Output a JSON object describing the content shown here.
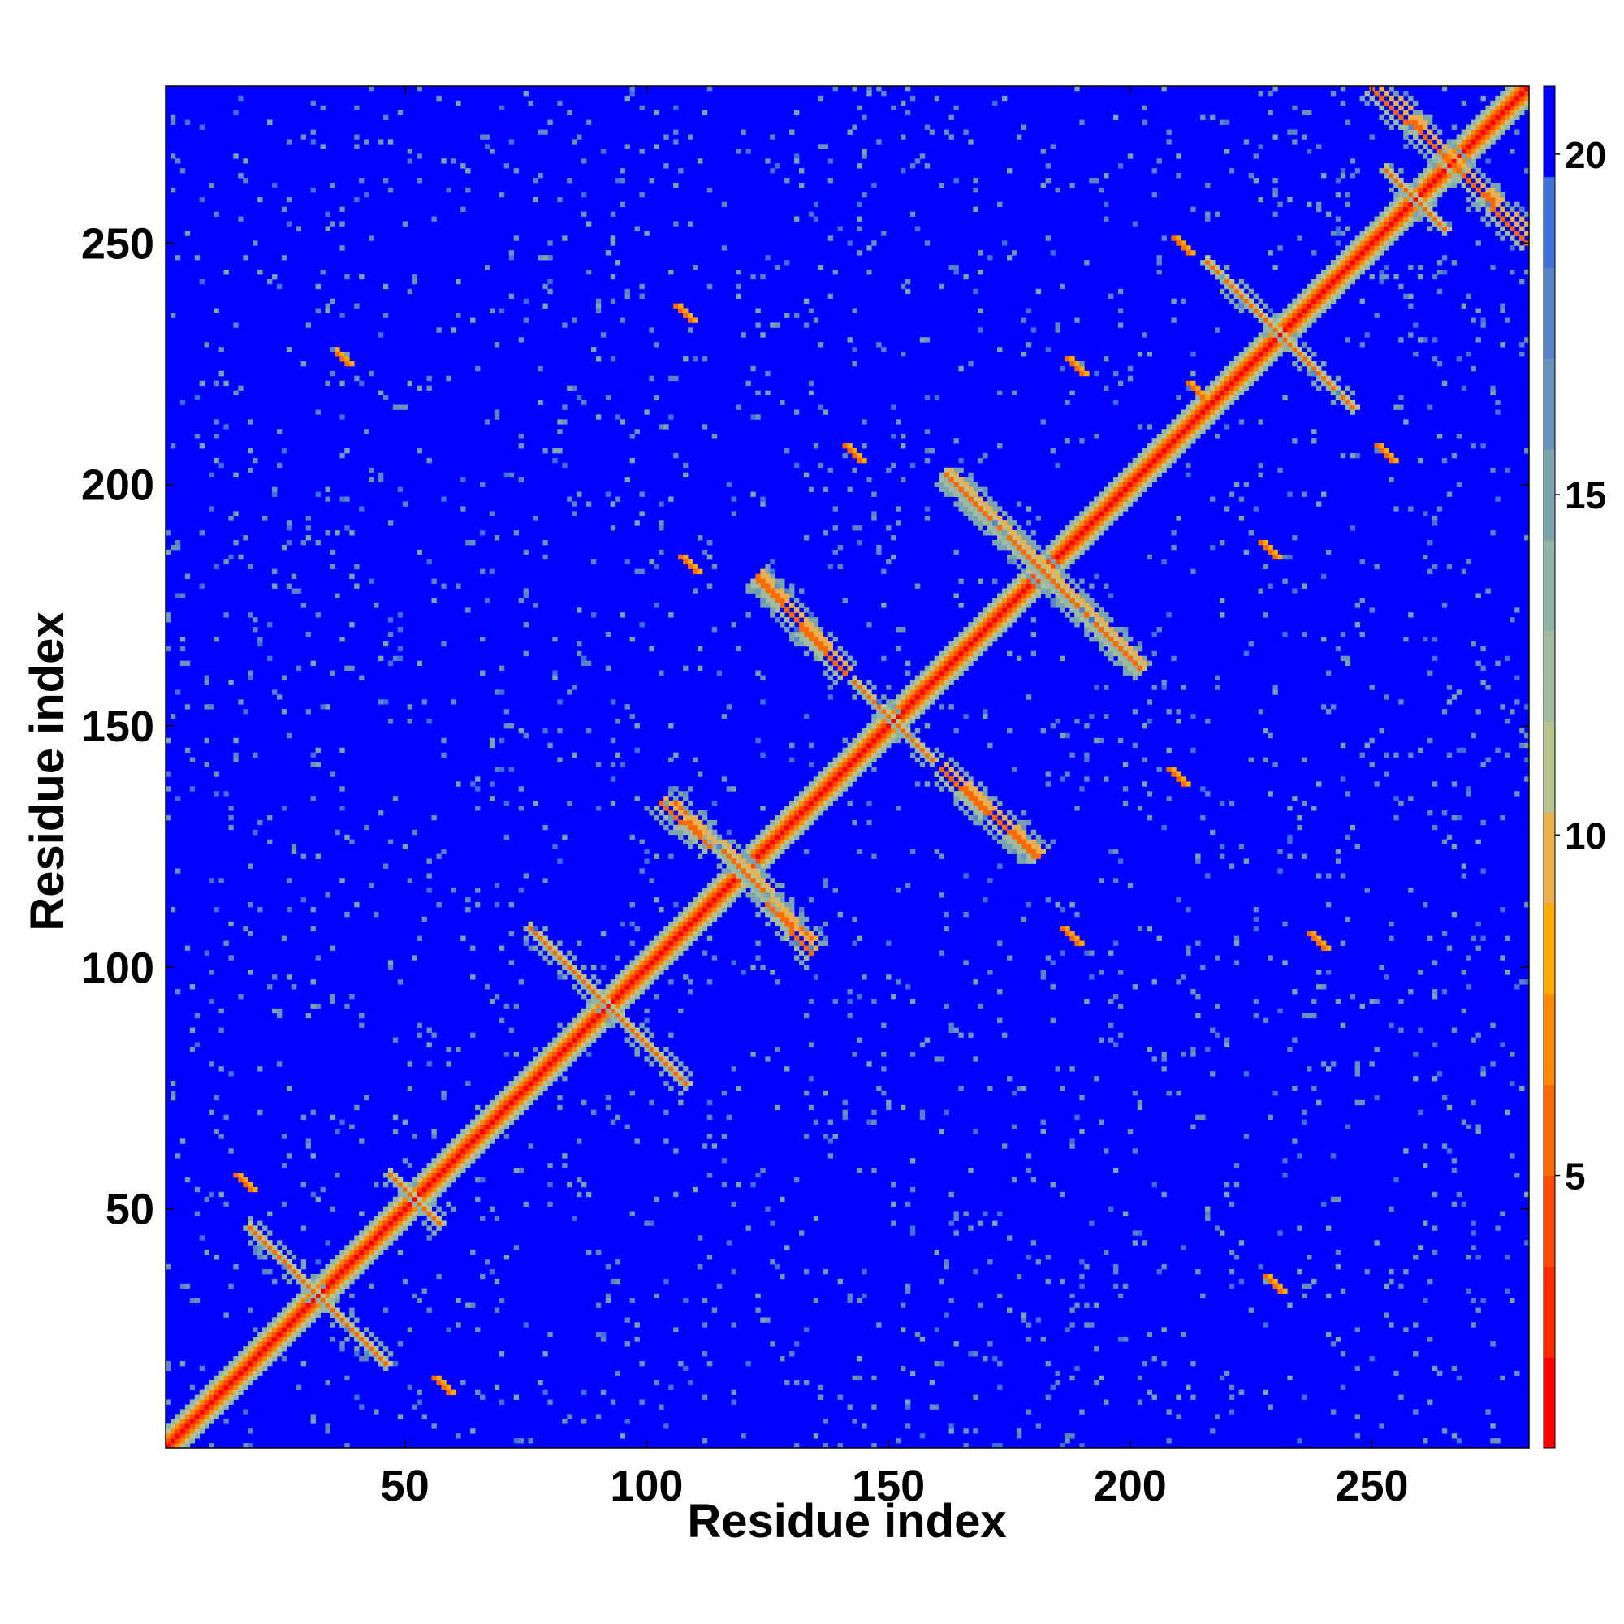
{
  "chart_data": {
    "type": "heatmap",
    "title": "",
    "xlabel": "Residue index",
    "ylabel": "Residue index",
    "xlim": [
      1,
      282
    ],
    "ylim": [
      1,
      282
    ],
    "x_ticks": [
      50,
      100,
      150,
      200,
      250
    ],
    "y_ticks": [
      50,
      100,
      150,
      200,
      250
    ],
    "colorbar": {
      "range": [
        1,
        21
      ],
      "ticks": [
        5,
        10,
        15,
        20
      ],
      "colors": [
        "#ff0000",
        "#ff2a00",
        "#ff4a00",
        "#ff6a00",
        "#ff8a00",
        "#ffaa00",
        "#e8b050",
        "#b8c490",
        "#a0bca0",
        "#90b4a8",
        "#7aa4b0",
        "#6894bc",
        "#5a84c8",
        "#4070dc",
        "#0000ff"
      ]
    },
    "values_description_note": null,
    "diagonal": {
      "start": 1,
      "end": 282
    },
    "contact_lines": [
      {
        "center": 32,
        "half_length": 14,
        "kind": "antiparallel"
      },
      {
        "center": 52,
        "half_length": 5,
        "kind": "antiparallel"
      },
      {
        "center": 92,
        "half_length": 16,
        "kind": "antiparallel"
      },
      {
        "center": 120,
        "half_length": 14,
        "kind": "antiparallel"
      },
      {
        "center": 151,
        "half_length": 8,
        "kind": "antiparallel"
      },
      {
        "center": 182,
        "half_length": 20,
        "kind": "antiparallel"
      },
      {
        "center": 231,
        "half_length": 15,
        "kind": "antiparallel"
      },
      {
        "center": 259,
        "half_length": 6,
        "kind": "antiparallel"
      }
    ],
    "long_range_segments": [
      {
        "x": [
          123,
          141
        ],
        "y": [
          180,
          161
        ]
      },
      {
        "x": [
          161,
          181
        ],
        "y": [
          141,
          123
        ]
      },
      {
        "x": [
          163,
          202
        ],
        "y": [
          201,
          162
        ]
      },
      {
        "x": [
          252,
          282
        ],
        "y": [
          282,
          250
        ]
      },
      {
        "x": [
          104,
          120
        ],
        "y": [
          135,
          120
        ]
      },
      {
        "x": [
          125,
          134
        ],
        "y": [
          113,
          103
        ]
      }
    ],
    "contact_spots": [
      {
        "x": 106,
        "y": 237
      },
      {
        "x": 35,
        "y": 228
      },
      {
        "x": 187,
        "y": 226
      },
      {
        "x": 227,
        "y": 188
      },
      {
        "x": 237,
        "y": 107
      },
      {
        "x": 228,
        "y": 36
      },
      {
        "x": 56,
        "y": 15
      },
      {
        "x": 15,
        "y": 57
      },
      {
        "x": 107,
        "y": 185
      },
      {
        "x": 186,
        "y": 108
      },
      {
        "x": 208,
        "y": 141
      },
      {
        "x": 141,
        "y": 208
      },
      {
        "x": 209,
        "y": 251
      },
      {
        "x": 251,
        "y": 208
      },
      {
        "x": 212,
        "y": 221
      }
    ]
  }
}
